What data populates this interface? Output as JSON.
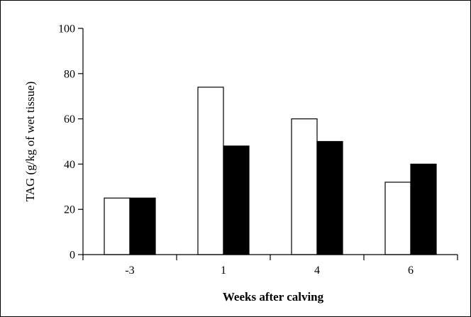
{
  "chart_data": {
    "type": "bar",
    "title": "",
    "xlabel": "Weeks after calving",
    "ylabel": "TAG (g/kg of wet tissue)",
    "categories": [
      "-3",
      "1",
      "4",
      "6"
    ],
    "series": [
      {
        "values": [
          25,
          74,
          60,
          32
        ],
        "color": "#ffffff"
      },
      {
        "values": [
          25,
          48,
          50,
          40
        ],
        "color": "#000000"
      }
    ],
    "ylim": [
      0,
      100
    ],
    "yticks": [
      0,
      20,
      40,
      60,
      80,
      100
    ],
    "grid": false,
    "legend": "none"
  }
}
